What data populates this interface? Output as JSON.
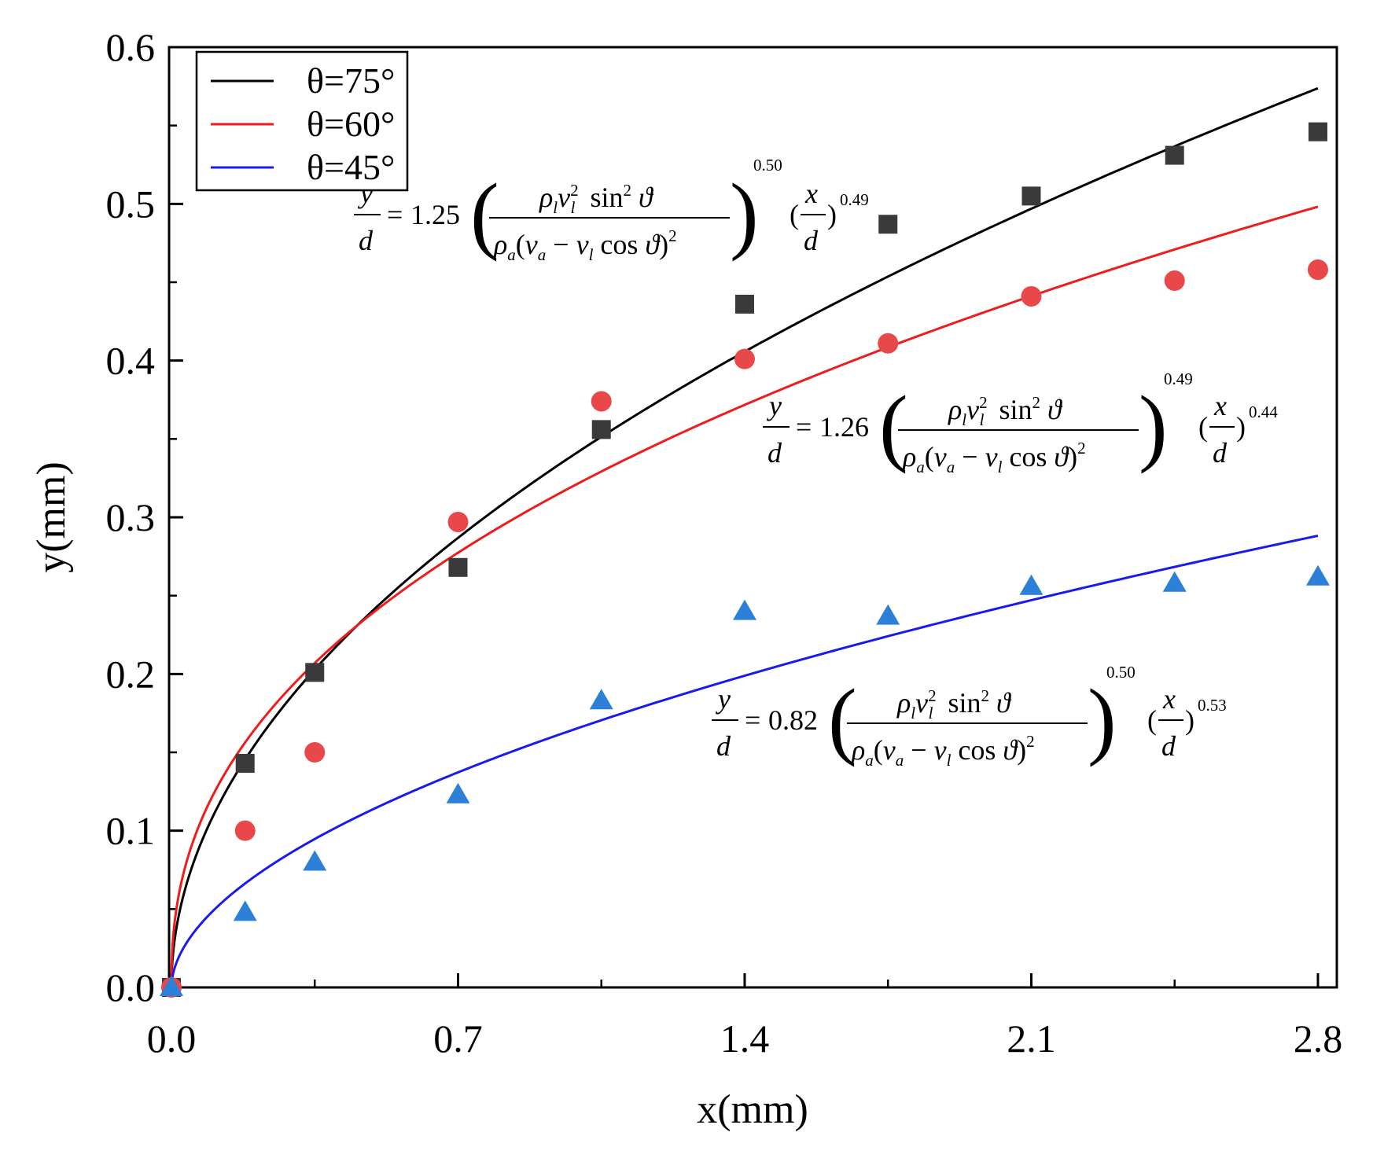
{
  "chart_data": {
    "type": "scatter",
    "xlabel": "x(mm)",
    "ylabel": "y(mm)",
    "xlim": [
      0,
      2.97
    ],
    "ylim": [
      0,
      0.6
    ],
    "xticks": [
      "0.0",
      "0.7",
      "1.4",
      "2.1",
      "2.8"
    ],
    "xtick_values": [
      0,
      0.7,
      1.4,
      2.1,
      2.8
    ],
    "yticks": [
      "0.0",
      "0.1",
      "0.2",
      "0.3",
      "0.4",
      "0.5",
      "0.6"
    ],
    "ytick_values": [
      0,
      0.1,
      0.2,
      0.3,
      0.4,
      0.5,
      0.6
    ],
    "grid": false,
    "legend_position": "top-left",
    "series": [
      {
        "name": "θ=75°",
        "color": "#000000",
        "marker_color": "#3a3a3a",
        "marker": "square",
        "x": [
          0,
          0.18,
          0.35,
          0.7,
          1.05,
          1.4,
          1.75,
          2.1,
          2.45,
          2.8
        ],
        "y": [
          0,
          0.143,
          0.201,
          0.268,
          0.356,
          0.436,
          0.487,
          0.505,
          0.531,
          0.546
        ],
        "fit": {
          "a": 0.3429,
          "b": 0.5
        }
      },
      {
        "name": "θ=60°",
        "color": "#ee1c1c",
        "marker_color": "#e8484a",
        "marker": "circle",
        "x": [
          0,
          0.18,
          0.35,
          0.7,
          1.05,
          1.4,
          1.75,
          2.1,
          2.45,
          2.8
        ],
        "y": [
          0,
          0.1,
          0.15,
          0.297,
          0.374,
          0.401,
          0.411,
          0.441,
          0.451,
          0.458
        ],
        "fit": {
          "a": 0.3225,
          "b": 0.4224
        }
      },
      {
        "name": "θ=45°",
        "color": "#1a1aee",
        "marker_color": "#2d80d8",
        "marker": "triangle",
        "x": [
          0,
          0.18,
          0.35,
          0.7,
          1.05,
          1.4,
          1.75,
          2.1,
          2.45,
          2.8
        ],
        "y": [
          0,
          0.048,
          0.08,
          0.123,
          0.183,
          0.24,
          0.237,
          0.256,
          0.258,
          0.262
        ],
        "fit": {
          "a": 0.1661,
          "b": 0.5353
        }
      }
    ],
    "annotations": [
      {
        "coef": "1.25",
        "exp1": "0.50",
        "exp2": "0.49"
      },
      {
        "coef": "1.26",
        "exp1": "0.49",
        "exp2": "0.44"
      },
      {
        "coef": "0.82",
        "exp1": "0.50",
        "exp2": "0.53"
      }
    ]
  }
}
